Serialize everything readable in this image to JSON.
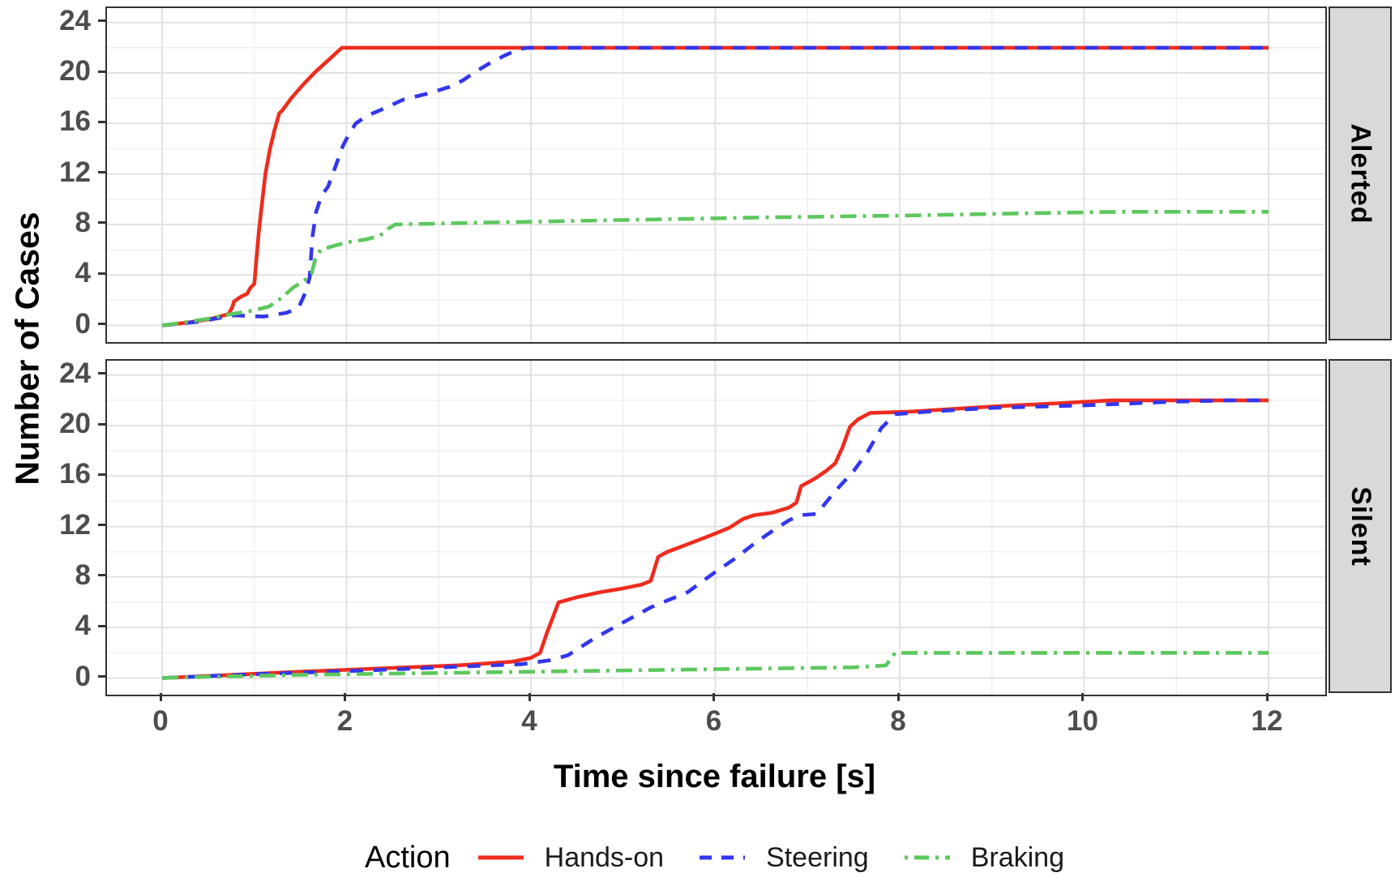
{
  "axes": {
    "x": {
      "title": "Time since failure [s]",
      "ticks": [
        0,
        2,
        4,
        6,
        8,
        10,
        12
      ],
      "minor": [
        1,
        3,
        5,
        7,
        9,
        11
      ],
      "range": [
        0,
        12
      ]
    },
    "y": {
      "title": "Number of Cases",
      "ticks": [
        0,
        4,
        8,
        12,
        16,
        20,
        24
      ],
      "minor": [
        2,
        6,
        10,
        14,
        18,
        22
      ],
      "range": [
        0,
        24
      ]
    }
  },
  "legend": {
    "title": "Action",
    "items": [
      {
        "label": "Hands-on",
        "color": "#ee2c1e",
        "swatch_dash": "none"
      },
      {
        "label": "Steering",
        "color": "#3236ee",
        "swatch_dash": "15 12"
      },
      {
        "label": "Braking",
        "color": "#5dc85d",
        "swatch_dash": "4 8 18 8"
      }
    ]
  },
  "style": {
    "grid_major": "#e2e2e2",
    "grid_minor": "#f0f0f0",
    "line_width": 4.6,
    "dashes": {
      "none": "",
      "steering": "16 13",
      "braking": "20 8 4 8"
    }
  },
  "chart_data": [
    {
      "type": "line",
      "facet": "Alerted",
      "xlabel": "Time since failure [s]",
      "ylabel": "Number of Cases",
      "xlim": [
        0,
        12
      ],
      "ylim": [
        0,
        24
      ],
      "grid": true,
      "legend_position": "bottom",
      "series": [
        {
          "name": "Hands-on",
          "color": "#ee2c1e",
          "dash": "none",
          "points": [
            [
              0,
              0
            ],
            [
              0.3,
              0.25
            ],
            [
              0.55,
              0.55
            ],
            [
              0.72,
              0.9
            ],
            [
              0.76,
              1.4
            ],
            [
              0.78,
              1.9
            ],
            [
              0.86,
              2.3
            ],
            [
              0.92,
              2.5
            ],
            [
              0.96,
              3
            ],
            [
              1.0,
              3.3
            ],
            [
              1.02,
              5
            ],
            [
              1.05,
              7.5
            ],
            [
              1.08,
              9.5
            ],
            [
              1.12,
              12
            ],
            [
              1.17,
              14
            ],
            [
              1.22,
              15.5
            ],
            [
              1.27,
              16.8
            ],
            [
              1.3,
              17
            ],
            [
              1.4,
              18
            ],
            [
              1.52,
              19
            ],
            [
              1.65,
              20
            ],
            [
              1.8,
              21
            ],
            [
              1.95,
              22
            ],
            [
              12,
              22
            ]
          ]
        },
        {
          "name": "Steering",
          "color": "#3236ee",
          "dash": "steering",
          "points": [
            [
              0,
              0
            ],
            [
              0.4,
              0.3
            ],
            [
              0.7,
              0.7
            ],
            [
              0.78,
              0.8
            ],
            [
              1.1,
              0.7
            ],
            [
              1.35,
              1.0
            ],
            [
              1.48,
              1.4
            ],
            [
              1.56,
              2.7
            ],
            [
              1.6,
              3.8
            ],
            [
              1.63,
              7
            ],
            [
              1.67,
              9
            ],
            [
              1.73,
              10.3
            ],
            [
              1.8,
              11
            ],
            [
              1.88,
              12.6
            ],
            [
              1.96,
              14.2
            ],
            [
              2.03,
              15.2
            ],
            [
              2.1,
              16
            ],
            [
              2.22,
              16.6
            ],
            [
              2.38,
              17.1
            ],
            [
              2.62,
              17.9
            ],
            [
              2.9,
              18.4
            ],
            [
              3.12,
              18.9
            ],
            [
              3.26,
              19.4
            ],
            [
              3.4,
              20.1
            ],
            [
              3.56,
              20.8
            ],
            [
              3.72,
              21.4
            ],
            [
              3.88,
              21.9
            ],
            [
              3.97,
              22
            ],
            [
              12,
              22
            ]
          ]
        },
        {
          "name": "Braking",
          "color": "#5dc85d",
          "dash": "braking",
          "points": [
            [
              0,
              0
            ],
            [
              0.3,
              0.3
            ],
            [
              0.55,
              0.6
            ],
            [
              0.75,
              0.9
            ],
            [
              1.0,
              1.2
            ],
            [
              1.16,
              1.5
            ],
            [
              1.3,
              2.2
            ],
            [
              1.42,
              3.0
            ],
            [
              1.55,
              3.6
            ],
            [
              1.62,
              4.1
            ],
            [
              1.66,
              5.2
            ],
            [
              1.72,
              6.0
            ],
            [
              1.86,
              6.3
            ],
            [
              2.02,
              6.6
            ],
            [
              2.2,
              6.8
            ],
            [
              2.36,
              7.1
            ],
            [
              2.46,
              7.7
            ],
            [
              2.53,
              8
            ],
            [
              3.5,
              8.15
            ],
            [
              5,
              8.35
            ],
            [
              6.5,
              8.55
            ],
            [
              8,
              8.7
            ],
            [
              9.5,
              8.9
            ],
            [
              10.4,
              9
            ],
            [
              12,
              9
            ]
          ]
        }
      ]
    },
    {
      "type": "line",
      "facet": "Silent",
      "xlabel": "Time since failure [s]",
      "ylabel": "Number of Cases",
      "xlim": [
        0,
        12
      ],
      "ylim": [
        0,
        24
      ],
      "grid": true,
      "legend_position": "bottom",
      "series": [
        {
          "name": "Hands-on",
          "color": "#ee2c1e",
          "dash": "none",
          "points": [
            [
              0,
              0
            ],
            [
              0.6,
              0.2
            ],
            [
              1.5,
              0.5
            ],
            [
              2.5,
              0.8
            ],
            [
              3.2,
              1.0
            ],
            [
              3.8,
              1.3
            ],
            [
              4.0,
              1.6
            ],
            [
              4.1,
              2.0
            ],
            [
              4.17,
              3.5
            ],
            [
              4.3,
              6.0
            ],
            [
              4.5,
              6.4
            ],
            [
              4.75,
              6.8
            ],
            [
              5.0,
              7.1
            ],
            [
              5.2,
              7.4
            ],
            [
              5.3,
              7.7
            ],
            [
              5.38,
              9.6
            ],
            [
              5.48,
              10
            ],
            [
              5.7,
              10.6
            ],
            [
              5.95,
              11.3
            ],
            [
              6.15,
              11.9
            ],
            [
              6.3,
              12.6
            ],
            [
              6.42,
              12.9
            ],
            [
              6.62,
              13.1
            ],
            [
              6.8,
              13.5
            ],
            [
              6.88,
              13.9
            ],
            [
              6.93,
              15.2
            ],
            [
              7.08,
              15.8
            ],
            [
              7.2,
              16.4
            ],
            [
              7.3,
              17
            ],
            [
              7.38,
              18.3
            ],
            [
              7.46,
              19.9
            ],
            [
              7.55,
              20.5
            ],
            [
              7.68,
              21
            ],
            [
              8.1,
              21.1
            ],
            [
              9,
              21.5
            ],
            [
              9.8,
              21.8
            ],
            [
              10.3,
              22
            ],
            [
              12,
              22
            ]
          ]
        },
        {
          "name": "Steering",
          "color": "#3236ee",
          "dash": "steering",
          "points": [
            [
              0,
              0
            ],
            [
              1.0,
              0.3
            ],
            [
              2.2,
              0.6
            ],
            [
              3.2,
              0.9
            ],
            [
              3.9,
              1.1
            ],
            [
              4.2,
              1.4
            ],
            [
              4.4,
              1.8
            ],
            [
              4.55,
              2.5
            ],
            [
              4.7,
              3.2
            ],
            [
              4.9,
              4.0
            ],
            [
              5.1,
              4.8
            ],
            [
              5.3,
              5.6
            ],
            [
              5.5,
              6.2
            ],
            [
              5.7,
              6.8
            ],
            [
              5.85,
              7.6
            ],
            [
              6.0,
              8.4
            ],
            [
              6.2,
              9.4
            ],
            [
              6.45,
              10.8
            ],
            [
              6.65,
              11.8
            ],
            [
              6.8,
              12.5
            ],
            [
              6.92,
              12.9
            ],
            [
              7.1,
              13
            ],
            [
              7.3,
              14.8
            ],
            [
              7.5,
              16.4
            ],
            [
              7.65,
              17.9
            ],
            [
              7.8,
              19.8
            ],
            [
              7.95,
              20.9
            ],
            [
              8.3,
              21.1
            ],
            [
              9,
              21.4
            ],
            [
              10,
              21.6
            ],
            [
              11,
              21.9
            ],
            [
              11.6,
              22
            ],
            [
              12,
              22
            ]
          ]
        },
        {
          "name": "Braking",
          "color": "#5dc85d",
          "dash": "braking",
          "points": [
            [
              0,
              0
            ],
            [
              0.5,
              0.1
            ],
            [
              1.5,
              0.25
            ],
            [
              2.5,
              0.35
            ],
            [
              3.5,
              0.45
            ],
            [
              4.5,
              0.55
            ],
            [
              5.5,
              0.65
            ],
            [
              6.5,
              0.75
            ],
            [
              7.5,
              0.85
            ],
            [
              7.85,
              1.0
            ],
            [
              7.95,
              2.0
            ],
            [
              12,
              2.0
            ]
          ]
        }
      ]
    }
  ]
}
